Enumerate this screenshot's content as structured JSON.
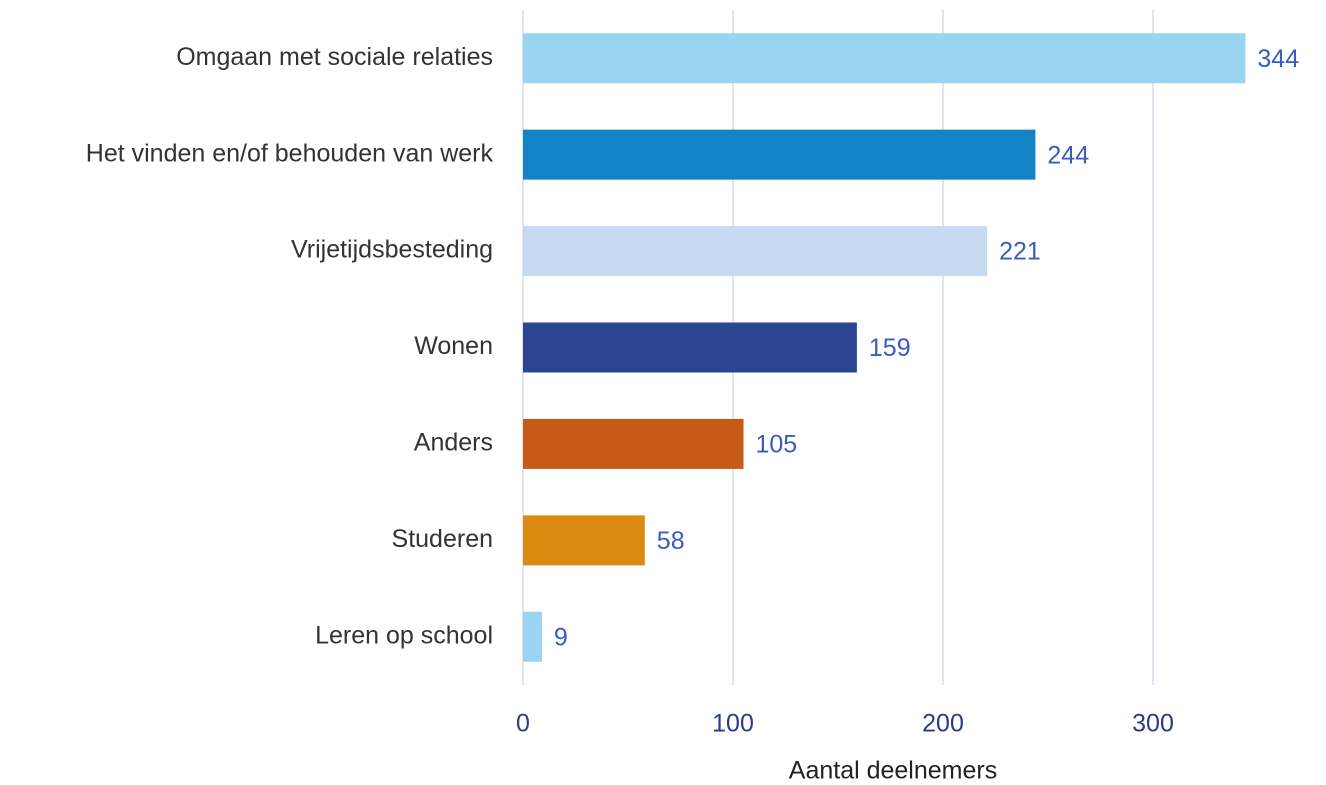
{
  "chart_data": {
    "type": "barh",
    "categories": [
      "Omgaan met sociale relaties",
      "Het vinden en/of behouden van werk",
      "Vrijetijdsbesteding",
      "Wonen",
      "Anders",
      "Studeren",
      "Leren op school"
    ],
    "values": [
      344,
      244,
      221,
      159,
      105,
      58,
      9
    ],
    "colors": [
      "#9bd3f2",
      "#1382c6",
      "#c8daf2",
      "#2c4593",
      "#c85a18",
      "#dc8a12",
      "#9bd3f2"
    ],
    "xlabel": "Aantal deelnemers",
    "xlim": [
      0,
      380
    ],
    "xticks": [
      0,
      100,
      200,
      300
    ],
    "grid": true
  }
}
